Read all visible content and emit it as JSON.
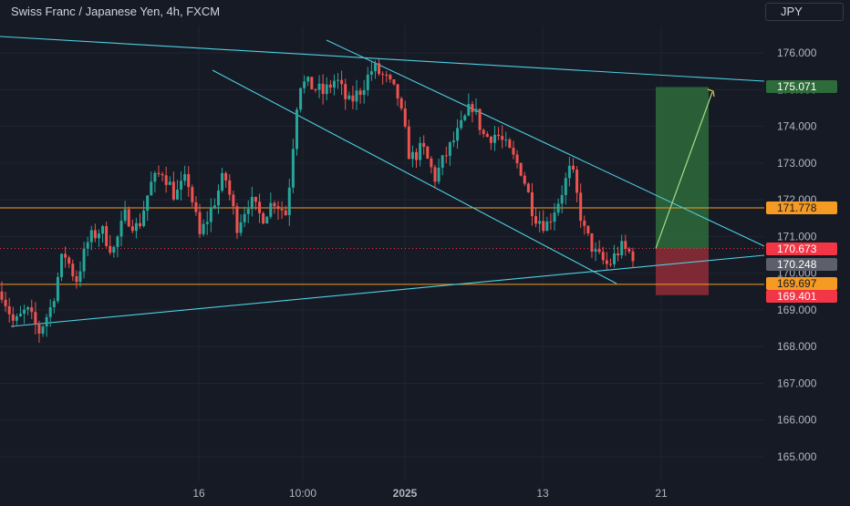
{
  "header": {
    "symbol_title": "Swiss Franc / Japanese Yen, 4h, FXCM",
    "currency_button": "JPY"
  },
  "colors": {
    "background": "#161a25",
    "up_candle": "#26a69a",
    "down_candle": "#ef5350",
    "trendline": "#4dd0e1",
    "level_line": "#f59b23",
    "target_zone": "#2e6b3a",
    "stop_zone": "#8a2b35",
    "current_price": "#f23645",
    "last_close_tag": "#5d606b"
  },
  "chart_data": {
    "type": "candlestick",
    "y_axis": {
      "ticks": [
        "176.000",
        "175.000",
        "174.000",
        "173.000",
        "172.000",
        "171.000",
        "170.000",
        "169.000",
        "168.000",
        "167.000",
        "166.000",
        "165.000"
      ],
      "tick_values": [
        176,
        175,
        174,
        173,
        172,
        171,
        170,
        169,
        168,
        167,
        166,
        165
      ],
      "range": [
        164.0,
        177.1
      ],
      "side": "right"
    },
    "x_axis": {
      "labels": [
        "16",
        "10:00",
        "2025",
        "13",
        "21"
      ]
    },
    "price_labels": [
      {
        "name": "target",
        "text": "175.071",
        "value": 175.071
      },
      {
        "name": "upper-level",
        "text": "171.778",
        "value": 171.778
      },
      {
        "name": "current-price",
        "text": "170.673",
        "value": 170.673
      },
      {
        "name": "last-close",
        "text": "170.248",
        "value": 170.248
      },
      {
        "name": "lower-level",
        "text": "169.697",
        "value": 169.697
      },
      {
        "name": "stop",
        "text": "169.401",
        "value": 169.401
      }
    ],
    "horizontal_levels": [
      171.778,
      169.697
    ],
    "position": {
      "entry": 170.673,
      "target": 175.071,
      "stop": 169.401
    },
    "price_path": [
      169.5,
      168.6,
      169.0,
      168.4,
      169.1,
      170.6,
      169.8,
      170.9,
      171.2,
      170.6,
      171.6,
      171.2,
      172.4,
      172.8,
      172.1,
      172.6,
      171.0,
      171.8,
      172.7,
      171.3,
      172.0,
      171.5,
      172.0,
      171.6,
      175.2,
      175.1,
      174.9,
      175.3,
      174.6,
      175.0,
      175.6,
      175.3,
      174.8,
      173.1,
      173.4,
      172.6,
      173.3,
      173.9,
      174.6,
      173.7,
      173.8,
      173.3,
      172.8,
      171.6,
      171.3,
      172.0,
      172.9,
      171.2,
      170.5,
      170.2,
      170.7,
      170.5
    ]
  }
}
